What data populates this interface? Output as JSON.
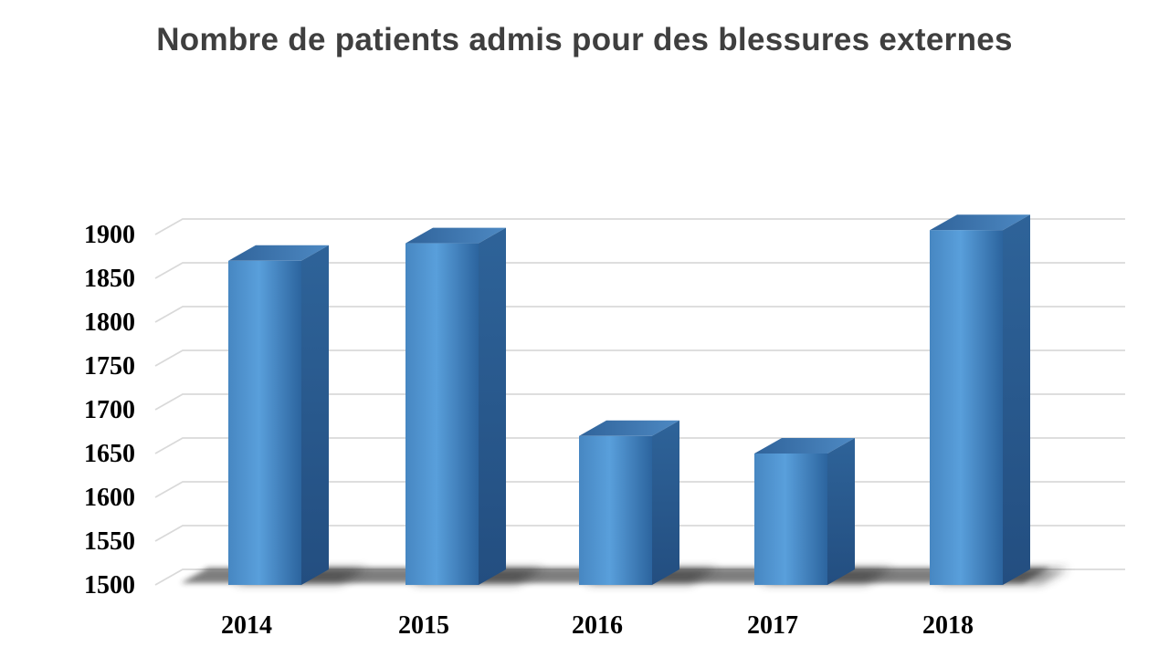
{
  "chart_data": {
    "type": "bar",
    "title": "Nombre de patients admis pour des blessures externes",
    "xlabel": "",
    "ylabel": "",
    "categories": [
      "2014",
      "2015",
      "2016",
      "2017",
      "2018"
    ],
    "values": [
      1870,
      1890,
      1670,
      1650,
      1905
    ],
    "ylim": [
      1500,
      1900
    ],
    "ytick_step": 50,
    "yticks": [
      1500,
      1550,
      1600,
      1650,
      1700,
      1750,
      1800,
      1850,
      1900
    ],
    "grid": true,
    "legend": false,
    "style_3d": true,
    "colors": {
      "background": "#ffffff",
      "title_text": "#3f3f3f",
      "axis_text": "#000000",
      "gridline": "#d9d9d9",
      "front_left": "#4787c2",
      "front_mid": "#599fdb",
      "front_right": "#2c649e",
      "top_left": "#30639a",
      "top_right": "#4d89c3",
      "side_top": "#2e6399",
      "side_bottom": "#234e80",
      "shadow": "#2b2b2b"
    }
  }
}
